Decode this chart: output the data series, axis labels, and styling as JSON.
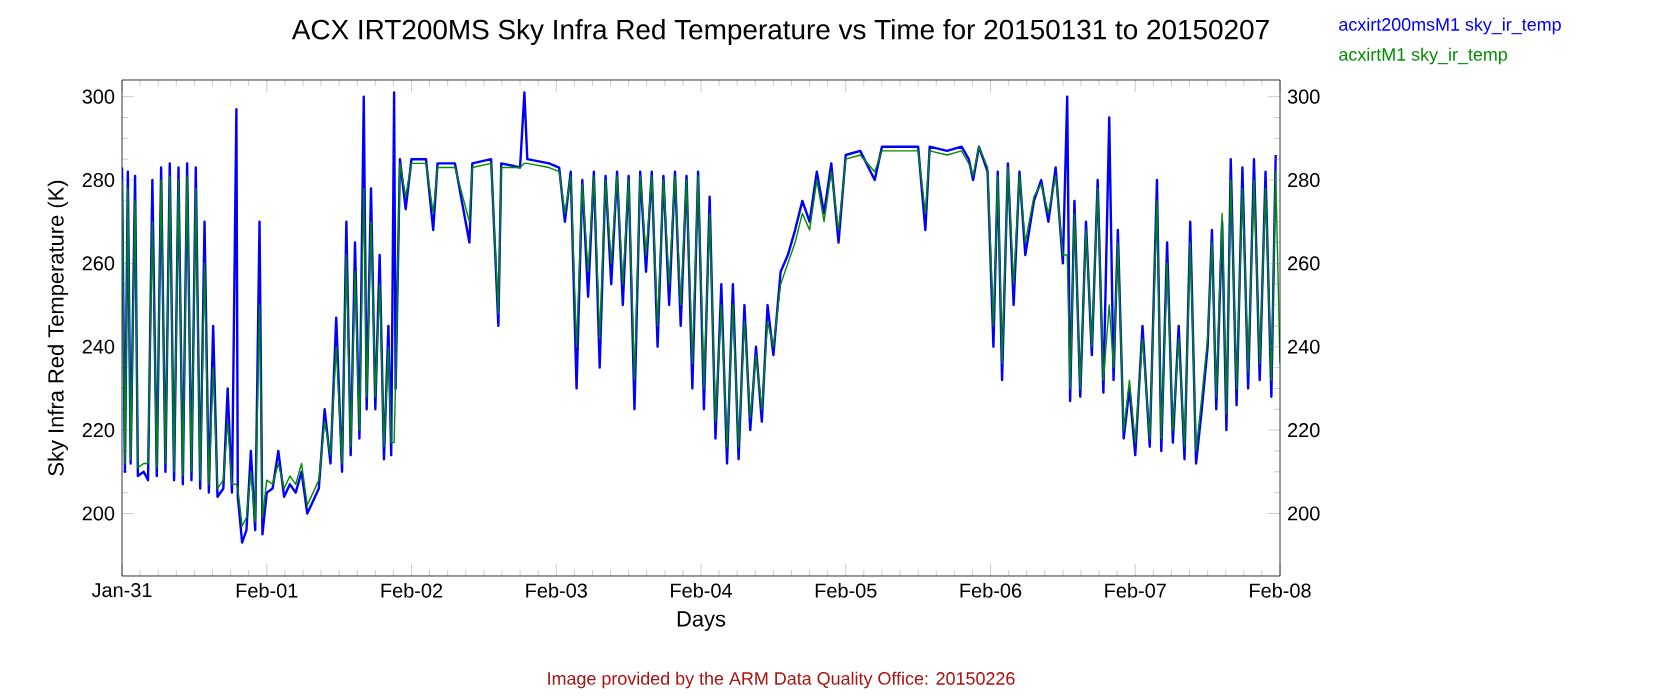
{
  "chart_data": {
    "type": "line",
    "title": "ACX IRT200MS Sky Infra Red Temperature vs Time for 20150131 to 20150207",
    "xlabel": "Days",
    "ylabel": "Sky Infra Red Temperature (K)",
    "annotations": [
      "Image provided by the ARM Data Quality Office: 20150226"
    ],
    "xlim": [
      "2015-01-31",
      "2015-02-08"
    ],
    "xticks": [
      {
        "value": "2015-01-31",
        "label": "Jan-31"
      },
      {
        "value": "2015-02-01",
        "label": "Feb-01"
      },
      {
        "value": "2015-02-02",
        "label": "Feb-02"
      },
      {
        "value": "2015-02-03",
        "label": "Feb-03"
      },
      {
        "value": "2015-02-04",
        "label": "Feb-04"
      },
      {
        "value": "2015-02-05",
        "label": "Feb-05"
      },
      {
        "value": "2015-02-06",
        "label": "Feb-06"
      },
      {
        "value": "2015-02-07",
        "label": "Feb-07"
      },
      {
        "value": "2015-02-08",
        "label": "Feb-08"
      }
    ],
    "ylim": [
      185,
      304
    ],
    "yticks": [
      200,
      220,
      240,
      260,
      280,
      300
    ],
    "y2lim": [
      185,
      304
    ],
    "y2ticks": [
      200,
      220,
      240,
      260,
      280,
      300
    ],
    "legend": "top right",
    "x": [
      "2015-01-31T00:00",
      "2015-01-31T00:29",
      "2015-01-31T00:58",
      "2015-01-31T01:26",
      "2015-01-31T02:10",
      "2015-01-31T02:38",
      "2015-01-31T03:36",
      "2015-01-31T04:19",
      "2015-01-31T05:02",
      "2015-01-31T05:46",
      "2015-01-31T06:29",
      "2015-01-31T07:12",
      "2015-01-31T07:55",
      "2015-01-31T08:38",
      "2015-01-31T09:22",
      "2015-01-31T10:05",
      "2015-01-31T10:48",
      "2015-01-31T11:31",
      "2015-01-31T12:14",
      "2015-01-31T12:58",
      "2015-01-31T13:41",
      "2015-01-31T14:24",
      "2015-01-31T15:07",
      "2015-01-31T15:50",
      "2015-01-31T16:48",
      "2015-01-31T17:31",
      "2015-01-31T18:14",
      "2015-01-31T18:58",
      "2015-01-31T19:12",
      "2015-01-31T19:55",
      "2015-01-31T20:38",
      "2015-01-31T21:22",
      "2015-01-31T22:05",
      "2015-01-31T22:48",
      "2015-01-31T23:17",
      "2015-02-01T00:00",
      "2015-02-01T00:58",
      "2015-02-01T01:55",
      "2015-02-01T02:53",
      "2015-02-01T03:50",
      "2015-02-01T04:48",
      "2015-02-01T05:46",
      "2015-02-01T06:43",
      "2015-02-01T07:41",
      "2015-02-01T08:38",
      "2015-02-01T09:36",
      "2015-02-01T10:34",
      "2015-02-01T11:31",
      "2015-02-01T12:29",
      "2015-02-01T13:12",
      "2015-02-01T13:55",
      "2015-02-01T14:38",
      "2015-02-01T15:22",
      "2015-02-01T16:05",
      "2015-02-01T16:34",
      "2015-02-01T17:17",
      "2015-02-01T18:00",
      "2015-02-01T18:43",
      "2015-02-01T19:26",
      "2015-02-01T20:10",
      "2015-02-01T20:38",
      "2015-02-01T21:07",
      "2015-02-01T21:22",
      "2015-02-01T22:05",
      "2015-02-01T23:02",
      "2015-02-02T00:00",
      "2015-02-02T02:24",
      "2015-02-02T03:36",
      "2015-02-02T04:19",
      "2015-02-02T07:12",
      "2015-02-02T09:36",
      "2015-02-02T10:05",
      "2015-02-02T13:12",
      "2015-02-02T14:24",
      "2015-02-02T14:53",
      "2015-02-02T18:00",
      "2015-02-02T18:43",
      "2015-02-02T19:12",
      "2015-02-02T22:48",
      "2015-02-03T00:29",
      "2015-02-03T01:26",
      "2015-02-03T02:24",
      "2015-02-03T03:22",
      "2015-02-03T04:19",
      "2015-02-03T05:17",
      "2015-02-03T06:14",
      "2015-02-03T07:12",
      "2015-02-03T08:10",
      "2015-02-03T09:07",
      "2015-02-03T10:05",
      "2015-02-03T11:02",
      "2015-02-03T12:00",
      "2015-02-03T12:58",
      "2015-02-03T13:55",
      "2015-02-03T14:53",
      "2015-02-03T15:50",
      "2015-02-03T16:48",
      "2015-02-03T17:46",
      "2015-02-03T18:43",
      "2015-02-03T19:41",
      "2015-02-03T20:38",
      "2015-02-03T21:36",
      "2015-02-03T22:34",
      "2015-02-03T23:31",
      "2015-02-04T00:29",
      "2015-02-04T01:26",
      "2015-02-04T02:24",
      "2015-02-04T03:22",
      "2015-02-04T04:19",
      "2015-02-04T05:17",
      "2015-02-04T06:14",
      "2015-02-04T07:12",
      "2015-02-04T08:10",
      "2015-02-04T09:07",
      "2015-02-04T10:05",
      "2015-02-04T11:02",
      "2015-02-04T12:00",
      "2015-02-04T13:12",
      "2015-02-04T14:24",
      "2015-02-04T15:36",
      "2015-02-04T16:48",
      "2015-02-04T18:00",
      "2015-02-04T19:12",
      "2015-02-04T20:24",
      "2015-02-04T21:36",
      "2015-02-04T22:48",
      "2015-02-05T00:00",
      "2015-02-05T02:24",
      "2015-02-05T04:48",
      "2015-02-05T06:00",
      "2015-02-05T09:36",
      "2015-02-05T12:00",
      "2015-02-05T13:12",
      "2015-02-05T13:55",
      "2015-02-05T16:48",
      "2015-02-05T19:12",
      "2015-02-05T20:24",
      "2015-02-05T21:07",
      "2015-02-05T22:05",
      "2015-02-05T23:31",
      "2015-02-06T00:29",
      "2015-02-06T01:12",
      "2015-02-06T01:55",
      "2015-02-06T02:53",
      "2015-02-06T03:50",
      "2015-02-06T04:48",
      "2015-02-06T05:46",
      "2015-02-06T07:12",
      "2015-02-06T08:24",
      "2015-02-06T09:36",
      "2015-02-06T10:48",
      "2015-02-06T12:00",
      "2015-02-06T12:43",
      "2015-02-06T13:12",
      "2015-02-06T13:55",
      "2015-02-06T14:53",
      "2015-02-06T15:50",
      "2015-02-06T16:48",
      "2015-02-06T17:46",
      "2015-02-06T18:43",
      "2015-02-06T19:41",
      "2015-02-06T20:24",
      "2015-02-06T21:07",
      "2015-02-06T22:05",
      "2015-02-06T23:02",
      "2015-02-07T00:00",
      "2015-02-07T01:12",
      "2015-02-07T02:24",
      "2015-02-07T03:36",
      "2015-02-07T04:19",
      "2015-02-07T05:17",
      "2015-02-07T06:14",
      "2015-02-07T07:12",
      "2015-02-07T08:10",
      "2015-02-07T09:07",
      "2015-02-07T10:05",
      "2015-02-07T11:02",
      "2015-02-07T12:00",
      "2015-02-07T12:43",
      "2015-02-07T13:26",
      "2015-02-07T14:24",
      "2015-02-07T15:07",
      "2015-02-07T15:50",
      "2015-02-07T16:48",
      "2015-02-07T17:46",
      "2015-02-07T18:43",
      "2015-02-07T19:41",
      "2015-02-07T20:38",
      "2015-02-07T21:36",
      "2015-02-07T22:34",
      "2015-02-07T23:17",
      "2015-02-08T00:00"
    ],
    "series": [
      {
        "name": "acxirt200msM1 sky_ir_temp",
        "color": "#0000ff",
        "values": [
          283,
          210,
          282,
          212,
          281,
          209,
          210,
          208,
          280,
          209,
          283,
          210,
          284,
          208,
          283,
          207,
          284,
          208,
          283,
          206,
          270,
          205,
          245,
          204,
          206,
          230,
          205,
          297,
          204,
          193,
          196,
          215,
          196,
          270,
          195,
          205,
          206,
          215,
          204,
          207,
          205,
          210,
          200,
          203,
          206,
          225,
          212,
          247,
          210,
          270,
          214,
          265,
          218,
          300,
          225,
          278,
          225,
          262,
          213,
          245,
          214,
          301,
          230,
          285,
          273,
          285,
          285,
          268,
          284,
          284,
          265,
          284,
          285,
          245,
          284,
          283,
          301,
          285,
          284,
          283,
          270,
          282,
          230,
          280,
          252,
          282,
          235,
          281,
          255,
          282,
          250,
          281,
          225,
          282,
          258,
          282,
          240,
          281,
          250,
          282,
          245,
          281,
          230,
          282,
          225,
          276,
          218,
          255,
          212,
          255,
          213,
          250,
          220,
          240,
          222,
          250,
          238,
          258,
          262,
          268,
          275,
          270,
          282,
          272,
          284,
          265,
          286,
          287,
          280,
          288,
          288,
          288,
          268,
          288,
          287,
          288,
          285,
          280,
          288,
          282,
          240,
          282,
          232,
          284,
          250,
          282,
          262,
          275,
          280,
          270,
          283,
          260,
          300,
          227,
          275,
          228,
          270,
          238,
          280,
          229,
          295,
          232,
          268,
          218,
          230,
          214,
          245,
          216,
          280,
          215,
          265,
          217,
          245,
          213,
          270,
          212,
          225,
          240,
          268,
          225,
          270,
          220,
          285,
          226,
          283,
          230,
          285,
          232,
          282,
          228,
          286,
          null
        ]
      },
      {
        "name": "acxirtM1 sky_ir_temp",
        "color": "#008c00",
        "values": [
          280,
          212,
          278,
          213,
          275,
          211,
          212,
          212,
          270,
          211,
          280,
          212,
          281,
          210,
          280,
          209,
          281,
          210,
          278,
          208,
          260,
          207,
          235,
          206,
          208,
          222,
          207,
          207,
          206,
          197,
          199,
          210,
          198,
          250,
          199,
          208,
          207,
          212,
          206,
          209,
          207,
          212,
          202,
          205,
          208,
          222,
          214,
          240,
          212,
          262,
          216,
          258,
          220,
          278,
          228,
          270,
          228,
          255,
          216,
          240,
          217,
          217,
          232,
          284,
          276,
          284,
          284,
          272,
          283,
          283,
          270,
          283,
          284,
          248,
          283,
          283,
          284,
          284,
          283,
          282,
          272,
          281,
          240,
          279,
          258,
          281,
          242,
          280,
          260,
          281,
          255,
          280,
          232,
          281,
          262,
          281,
          245,
          280,
          255,
          281,
          250,
          280,
          236,
          281,
          230,
          272,
          222,
          250,
          216,
          250,
          216,
          246,
          223,
          238,
          225,
          246,
          240,
          255,
          260,
          265,
          272,
          268,
          280,
          270,
          282,
          268,
          285,
          286,
          282,
          287,
          287,
          287,
          272,
          287,
          286,
          287,
          284,
          281,
          288,
          283,
          245,
          281,
          236,
          283,
          255,
          281,
          265,
          276,
          279,
          272,
          281,
          262,
          262,
          230,
          272,
          230,
          268,
          240,
          278,
          232,
          250,
          235,
          265,
          220,
          232,
          217,
          242,
          218,
          275,
          218,
          260,
          220,
          242,
          216,
          265,
          215,
          228,
          242,
          265,
          228,
          272,
          224,
          280,
          230,
          278,
          234,
          280,
          236,
          278,
          232,
          282,
          236
        ]
      }
    ]
  }
}
